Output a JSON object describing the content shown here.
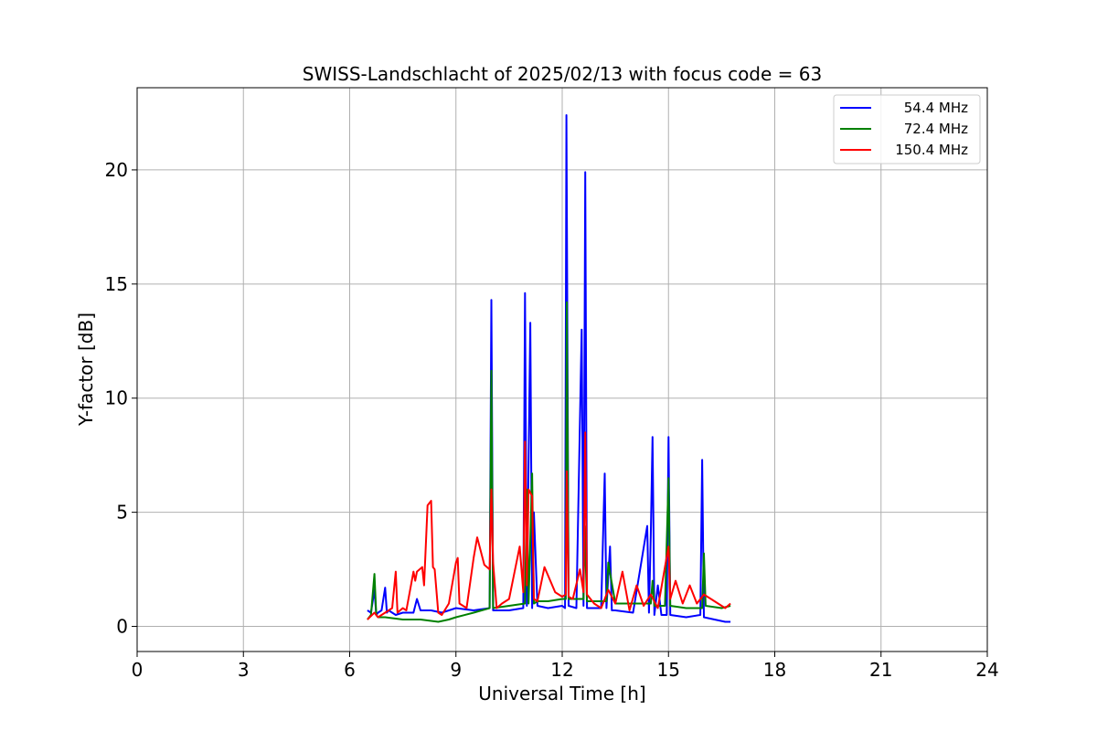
{
  "chart_data": {
    "type": "line",
    "title": "SWISS-Landschlacht of 2025/02/13 with focus code = 63",
    "xlabel": "Universal Time [h]",
    "ylabel": "Y-factor [dB]",
    "xlim": [
      0,
      24
    ],
    "ylim": [
      -1.1,
      23.6
    ],
    "xticks": [
      0,
      3,
      6,
      9,
      12,
      15,
      18,
      21,
      24
    ],
    "yticks": [
      0,
      5,
      10,
      15,
      20
    ],
    "grid": true,
    "legend_position": "top-right",
    "series": [
      {
        "name": " 54.4 MHz",
        "color": "#0000ff",
        "x": [
          6.5,
          6.6,
          6.7,
          6.75,
          6.8,
          6.9,
          7.0,
          7.05,
          7.1,
          7.3,
          7.5,
          7.8,
          7.9,
          8.0,
          8.3,
          8.6,
          9.0,
          9.5,
          9.95,
          10.0,
          10.05,
          10.5,
          10.9,
          10.95,
          11.0,
          11.1,
          11.15,
          11.2,
          11.3,
          11.6,
          12.0,
          12.08,
          12.12,
          12.18,
          12.4,
          12.55,
          12.6,
          12.65,
          12.7,
          12.8,
          13.1,
          13.2,
          13.25,
          13.35,
          13.4,
          13.5,
          14.0,
          14.4,
          14.45,
          14.5,
          14.55,
          14.6,
          14.7,
          14.8,
          14.95,
          15.0,
          15.05,
          15.5,
          15.9,
          15.95,
          16.0,
          16.3,
          16.6,
          16.75
        ],
        "y": [
          0.7,
          0.6,
          1.6,
          0.5,
          0.6,
          0.7,
          1.7,
          0.6,
          0.7,
          0.5,
          0.6,
          0.6,
          1.2,
          0.7,
          0.7,
          0.6,
          0.8,
          0.7,
          0.8,
          14.3,
          0.7,
          0.7,
          0.8,
          14.6,
          0.9,
          13.3,
          0.8,
          5.0,
          0.9,
          0.8,
          0.9,
          0.8,
          22.4,
          0.9,
          0.8,
          13.0,
          0.9,
          19.9,
          0.8,
          0.8,
          0.8,
          6.7,
          0.8,
          3.5,
          0.7,
          0.7,
          0.6,
          4.4,
          0.6,
          4.0,
          8.3,
          0.5,
          1.8,
          0.5,
          0.5,
          8.3,
          0.5,
          0.4,
          0.5,
          7.3,
          0.4,
          0.3,
          0.2,
          0.2
        ]
      },
      {
        "name": " 72.4 MHz",
        "color": "#008000",
        "x": [
          6.5,
          6.6,
          6.7,
          6.75,
          6.8,
          7.0,
          7.5,
          8.0,
          8.5,
          8.8,
          9.0,
          9.5,
          9.95,
          10.0,
          10.05,
          10.5,
          10.95,
          11.0,
          11.05,
          11.15,
          11.2,
          11.3,
          11.6,
          12.0,
          12.1,
          12.13,
          12.18,
          12.5,
          12.6,
          12.63,
          12.7,
          13.0,
          13.25,
          13.3,
          13.5,
          14.0,
          14.5,
          14.55,
          14.6,
          14.9,
          15.0,
          15.05,
          15.5,
          15.95,
          16.0,
          16.05,
          16.5,
          16.75
        ],
        "y": [
          0.3,
          0.5,
          2.3,
          0.5,
          0.4,
          0.4,
          0.3,
          0.3,
          0.2,
          0.3,
          0.4,
          0.6,
          0.8,
          11.2,
          0.8,
          0.9,
          1.0,
          6.0,
          1.0,
          6.7,
          1.0,
          1.1,
          1.1,
          1.2,
          1.2,
          14.2,
          1.2,
          1.2,
          1.2,
          4.4,
          1.1,
          1.1,
          1.1,
          2.8,
          1.0,
          1.0,
          1.0,
          2.0,
          0.9,
          0.9,
          6.5,
          0.9,
          0.8,
          0.8,
          3.2,
          0.9,
          0.8,
          0.9
        ]
      },
      {
        "name": " 150.4 MHz",
        "color": "#ff0000",
        "x": [
          6.5,
          6.7,
          6.8,
          7.0,
          7.2,
          7.3,
          7.35,
          7.5,
          7.6,
          7.8,
          7.85,
          7.9,
          8.05,
          8.1,
          8.2,
          8.3,
          8.35,
          8.4,
          8.5,
          8.6,
          8.8,
          9.0,
          9.05,
          9.1,
          9.3,
          9.5,
          9.6,
          9.8,
          9.95,
          10.0,
          10.05,
          10.15,
          10.3,
          10.5,
          10.8,
          10.9,
          10.95,
          11.0,
          11.05,
          11.15,
          11.2,
          11.3,
          11.5,
          11.8,
          12.0,
          12.1,
          12.13,
          12.18,
          12.3,
          12.5,
          12.6,
          12.65,
          12.7,
          12.9,
          13.1,
          13.3,
          13.5,
          13.7,
          13.9,
          14.1,
          14.3,
          14.5,
          14.7,
          14.9,
          15.0,
          15.05,
          15.2,
          15.4,
          15.6,
          15.8,
          16.0,
          16.2,
          16.4,
          16.6,
          16.75
        ],
        "y": [
          0.3,
          0.6,
          0.4,
          0.6,
          0.8,
          2.4,
          0.6,
          0.8,
          0.7,
          2.4,
          2.0,
          2.4,
          2.6,
          1.8,
          5.3,
          5.5,
          2.6,
          2.5,
          0.6,
          0.5,
          1.0,
          2.8,
          3.0,
          1.0,
          0.8,
          3.0,
          3.9,
          2.7,
          2.5,
          6.0,
          2.8,
          0.8,
          1.0,
          1.2,
          3.5,
          1.5,
          8.1,
          1.8,
          6.0,
          5.7,
          1.2,
          1.1,
          2.6,
          1.5,
          1.3,
          1.4,
          6.8,
          1.3,
          1.2,
          2.5,
          1.5,
          8.5,
          1.4,
          1.0,
          0.8,
          1.6,
          1.0,
          2.4,
          0.7,
          1.8,
          0.9,
          1.4,
          0.8,
          2.6,
          3.5,
          1.2,
          2.0,
          1.0,
          1.8,
          1.0,
          1.4,
          1.2,
          1.0,
          0.8,
          1.0
        ]
      }
    ]
  }
}
